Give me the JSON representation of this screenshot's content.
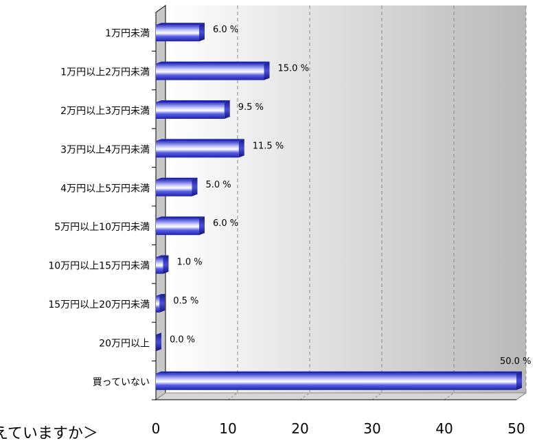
{
  "chart_data": {
    "type": "bar",
    "orientation": "horizontal",
    "categories": [
      "1万円未満",
      "1万円以上2万円未満",
      "2万円以上3万円未満",
      "3万円以上4万円未満",
      "4万円以上5万円未満",
      "5万円以上10万円未満",
      "10万円以上15万円未満",
      "15万円以上20万円未満",
      "20万円以上",
      "買っていない"
    ],
    "values": [
      6.0,
      15.0,
      9.5,
      11.5,
      5.0,
      6.0,
      1.0,
      0.5,
      0.0,
      50.0
    ],
    "value_labels": [
      "6.0 %",
      "15.0 %",
      "9.5 %",
      "11.5 %",
      "5.0 %",
      "6.0 %",
      "1.0 %",
      "0.5 %",
      "0.0 %",
      "50.0 %"
    ],
    "xticks": [
      "0",
      "10",
      "20",
      "30",
      "40",
      "50"
    ],
    "xlim": [
      0,
      50
    ],
    "grid": true,
    "style": "3d",
    "bar_color": "#2d35d6"
  },
  "caption": "えていますか＞"
}
